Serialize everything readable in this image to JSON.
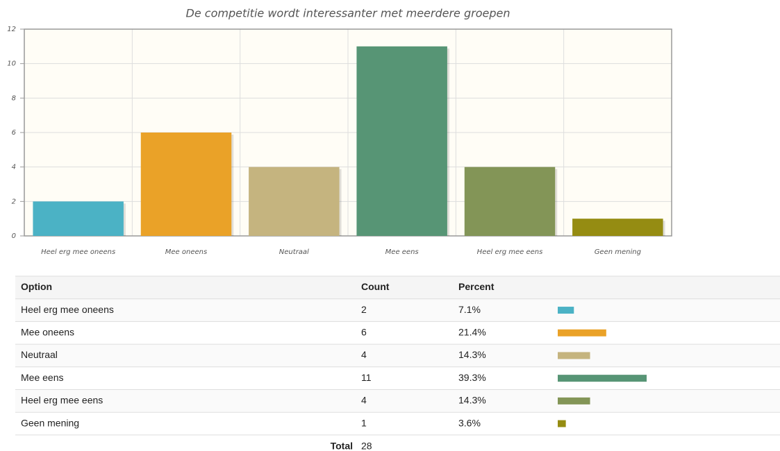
{
  "chart_data": {
    "type": "bar",
    "title": "De competitie wordt interessanter met meerdere groepen",
    "categories": [
      "Heel erg mee oneens",
      "Mee oneens",
      "Neutraal",
      "Mee eens",
      "Heel erg mee eens",
      "Geen mening"
    ],
    "values": [
      2,
      6,
      4,
      11,
      4,
      1
    ],
    "colors": [
      "#4bb2c5",
      "#eaa228",
      "#c5b47f",
      "#579575",
      "#839557",
      "#958c12"
    ],
    "ylim": [
      0,
      12
    ],
    "yticks": [
      0,
      2,
      4,
      6,
      8,
      10,
      12
    ],
    "grid": true
  },
  "table": {
    "header": [
      "Option",
      "Count",
      "Percent"
    ],
    "percents": [
      "7.1%",
      "21.4%",
      "14.3%",
      "39.3%",
      "14.3%",
      "3.6%"
    ],
    "total_label": "Total",
    "total": 28
  }
}
